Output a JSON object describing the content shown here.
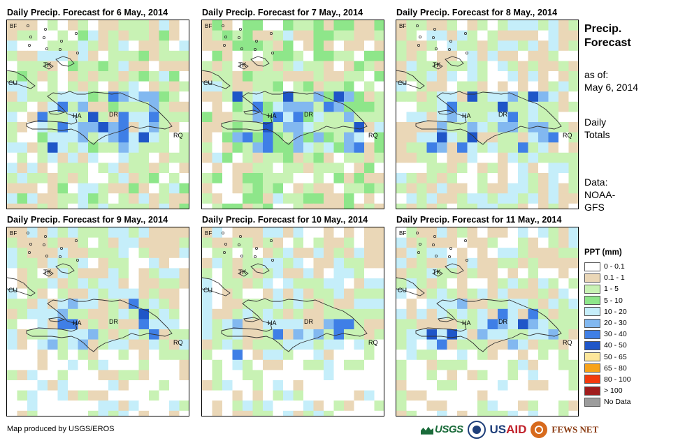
{
  "panels": [
    {
      "title": "Daily  Precip.  Forecast  for  6  May.,  2014",
      "labels": {
        "bf": "BF",
        "tk": "TK",
        "cu": "CU",
        "ha": "HA",
        "dr": "DR",
        "rq": "RQ"
      },
      "bias": 0.95
    },
    {
      "title": "Daily  Precip.  Forecast  for  7  May.,  2014",
      "labels": {
        "bf": "BF",
        "tk": "TK",
        "cu": "CU",
        "ha": "HA",
        "dr": "DR",
        "rq": "RQ"
      },
      "bias": 1.05
    },
    {
      "title": "Daily  Precip.  Forecast  for  8  May.,  2014",
      "labels": {
        "bf": "BF",
        "tk": "TK",
        "cu": "CU",
        "ha": "HA",
        "dr": "DR",
        "rq": "RQ"
      },
      "bias": 0.8
    },
    {
      "title": "Daily  Precip.  Forecast  for  9  May.,  2014",
      "labels": {
        "bf": "BF",
        "tk": "TK",
        "cu": "CU",
        "ha": "HA",
        "dr": "DR",
        "rq": "RQ"
      },
      "bias": 0.55
    },
    {
      "title": "Daily  Precip.  Forecast  for  10  May.,  2014",
      "labels": {
        "bf": "BF",
        "tk": "TK",
        "cu": "CU",
        "ha": "HA",
        "dr": "DR",
        "rq": "RQ"
      },
      "bias": 0.35
    },
    {
      "title": "Daily  Precip.  Forecast  for  11  May.,  2014",
      "labels": {
        "bf": "BF",
        "tk": "TK",
        "cu": "CU",
        "ha": "HA",
        "dr": "DR",
        "rq": "RQ"
      },
      "bias": 0.5
    }
  ],
  "side": {
    "title_line1": "Precip.",
    "title_line2": "Forecast",
    "asof_line1": "as of:",
    "asof_line2": "May 6, 2014",
    "daily_line1": "Daily",
    "daily_line2": "Totals",
    "data_line1": "Data:",
    "data_line2": "NOAA-",
    "data_line3": "GFS"
  },
  "legend": {
    "title": "PPT (mm)",
    "items": [
      {
        "label": "0 - 0.1",
        "color": "#ffffff"
      },
      {
        "label": "0.1 - 1",
        "color": "#ead7b7"
      },
      {
        "label": "1 - 5",
        "color": "#c8f2b4"
      },
      {
        "label": "5 - 10",
        "color": "#8ee68a"
      },
      {
        "label": "10 - 20",
        "color": "#c5eefa"
      },
      {
        "label": "20 - 30",
        "color": "#82b8f0"
      },
      {
        "label": "30 - 40",
        "color": "#3f7fe6"
      },
      {
        "label": "40 - 50",
        "color": "#1f56c8"
      },
      {
        "label": "50 - 65",
        "color": "#fde69a"
      },
      {
        "label": "65 - 80",
        "color": "#f7a21a"
      },
      {
        "label": "80 - 100",
        "color": "#f23a0e"
      },
      {
        "label": "> 100",
        "color": "#a01c1c"
      },
      {
        "label": "No Data",
        "color": "#9c9c9c"
      }
    ]
  },
  "credit": "Map produced by USGS/EROS",
  "logos": {
    "usgs": "USGS",
    "usaid_us": "US",
    "usaid_aid": "AID",
    "fews": "FEWS NET"
  }
}
